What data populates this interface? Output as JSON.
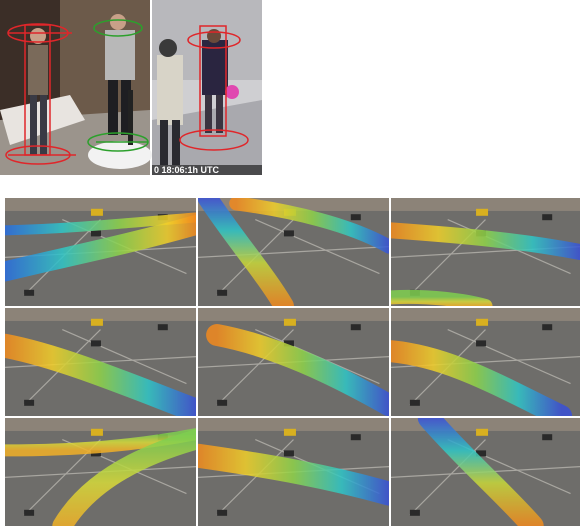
{
  "top_right_photo": {
    "timestamp": "0 18:06:1h UTC"
  }
}
